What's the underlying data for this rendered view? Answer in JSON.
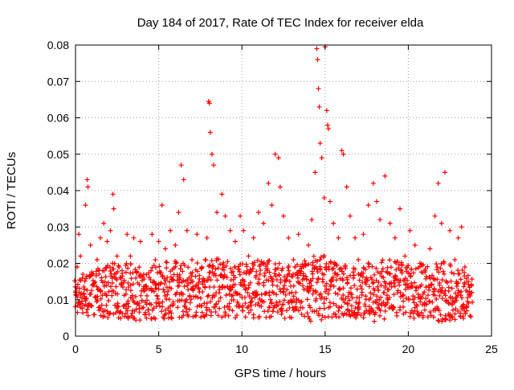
{
  "chart_data": {
    "type": "scatter",
    "title": "Day 184 of 2017, Rate Of TEC Index for receiver elda",
    "xlabel": "GPS time / hours",
    "ylabel": "ROTI / TECUs",
    "xlim": [
      0,
      25
    ],
    "ylim": [
      0,
      0.08
    ],
    "x_ticks": [
      0,
      5,
      10,
      15,
      20,
      25
    ],
    "x_tick_labels": [
      "0",
      "5",
      "10",
      "15",
      "20",
      "25"
    ],
    "y_ticks": [
      0,
      0.01,
      0.02,
      0.03,
      0.04,
      0.05,
      0.06,
      0.07,
      0.08
    ],
    "y_tick_labels": [
      "0",
      "0.01",
      "0.02",
      "0.03",
      "0.04",
      "0.05",
      "0.06",
      "0.07",
      "0.08"
    ],
    "grid": true,
    "marker": "+",
    "series": [
      {
        "color": "#ff0000",
        "points": [
          [
            0.0,
            0.012
          ],
          [
            0.1,
            0.019
          ],
          [
            0.2,
            0.028
          ],
          [
            0.3,
            0.022
          ],
          [
            0.45,
            0.017
          ],
          [
            0.6,
            0.036
          ],
          [
            0.7,
            0.043
          ],
          [
            0.75,
            0.041
          ],
          [
            0.9,
            0.025
          ],
          [
            1.1,
            0.014
          ],
          [
            1.3,
            0.021
          ],
          [
            1.5,
            0.027
          ],
          [
            1.7,
            0.031
          ],
          [
            1.9,
            0.026
          ],
          [
            2.1,
            0.029
          ],
          [
            2.25,
            0.039
          ],
          [
            2.3,
            0.035
          ],
          [
            2.5,
            0.022
          ],
          [
            2.8,
            0.018
          ],
          [
            3.1,
            0.028
          ],
          [
            3.3,
            0.022
          ],
          [
            3.5,
            0.027
          ],
          [
            3.7,
            0.009
          ],
          [
            3.9,
            0.026
          ],
          [
            4.1,
            0.017
          ],
          [
            4.3,
            0.013
          ],
          [
            4.6,
            0.028
          ],
          [
            4.8,
            0.021
          ],
          [
            5.0,
            0.026
          ],
          [
            5.2,
            0.036
          ],
          [
            5.4,
            0.024
          ],
          [
            5.7,
            0.029
          ],
          [
            6.0,
            0.025
          ],
          [
            6.2,
            0.034
          ],
          [
            6.35,
            0.047
          ],
          [
            6.5,
            0.043
          ],
          [
            6.7,
            0.029
          ],
          [
            7.0,
            0.021
          ],
          [
            7.3,
            0.028
          ],
          [
            7.6,
            0.019
          ],
          [
            7.9,
            0.027
          ],
          [
            8.0,
            0.0645
          ],
          [
            8.05,
            0.064
          ],
          [
            8.1,
            0.056
          ],
          [
            8.2,
            0.05
          ],
          [
            8.3,
            0.047
          ],
          [
            8.5,
            0.034
          ],
          [
            8.8,
            0.039
          ],
          [
            9.0,
            0.033
          ],
          [
            9.3,
            0.029
          ],
          [
            9.6,
            0.026
          ],
          [
            9.9,
            0.033
          ],
          [
            10.1,
            0.029
          ],
          [
            10.4,
            0.022
          ],
          [
            10.7,
            0.027
          ],
          [
            11.0,
            0.034
          ],
          [
            11.3,
            0.031
          ],
          [
            11.6,
            0.042
          ],
          [
            11.8,
            0.036
          ],
          [
            12.0,
            0.05
          ],
          [
            12.2,
            0.049
          ],
          [
            12.3,
            0.041
          ],
          [
            12.5,
            0.033
          ],
          [
            12.8,
            0.027
          ],
          [
            13.1,
            0.021
          ],
          [
            13.4,
            0.028
          ],
          [
            13.7,
            0.019
          ],
          [
            14.0,
            0.025
          ],
          [
            14.2,
            0.032
          ],
          [
            14.4,
            0.045
          ],
          [
            14.5,
            0.079
          ],
          [
            14.55,
            0.076
          ],
          [
            14.6,
            0.068
          ],
          [
            14.65,
            0.063
          ],
          [
            14.7,
            0.053
          ],
          [
            14.8,
            0.049
          ],
          [
            14.95,
            0.038
          ],
          [
            15.0,
            0.0795
          ],
          [
            15.1,
            0.062
          ],
          [
            15.15,
            0.058
          ],
          [
            15.2,
            0.057
          ],
          [
            15.3,
            0.037
          ],
          [
            15.5,
            0.031
          ],
          [
            15.8,
            0.027
          ],
          [
            16.0,
            0.051
          ],
          [
            16.1,
            0.05
          ],
          [
            16.3,
            0.041
          ],
          [
            16.5,
            0.033
          ],
          [
            16.8,
            0.027
          ],
          [
            17.0,
            0.021
          ],
          [
            17.3,
            0.028
          ],
          [
            17.6,
            0.036
          ],
          [
            17.9,
            0.042
          ],
          [
            18.1,
            0.037
          ],
          [
            18.3,
            0.032
          ],
          [
            18.6,
            0.044
          ],
          [
            18.9,
            0.031
          ],
          [
            19.2,
            0.027
          ],
          [
            19.5,
            0.035
          ],
          [
            19.8,
            0.022
          ],
          [
            20.1,
            0.029
          ],
          [
            20.4,
            0.025
          ],
          [
            20.7,
            0.02
          ],
          [
            21.0,
            0.018
          ],
          [
            21.3,
            0.024
          ],
          [
            21.6,
            0.033
          ],
          [
            21.8,
            0.042
          ],
          [
            22.0,
            0.031
          ],
          [
            22.2,
            0.045
          ],
          [
            22.5,
            0.029
          ],
          [
            22.8,
            0.021
          ],
          [
            23.0,
            0.027
          ],
          [
            23.2,
            0.03
          ],
          [
            23.4,
            0.019
          ],
          [
            23.6,
            0.015
          ],
          [
            23.8,
            0.012
          ]
        ]
      }
    ],
    "band": {
      "x_step": 0.1,
      "lower_edge": [
        [
          0,
          0.006
        ],
        [
          2,
          0.005
        ],
        [
          4,
          0.004
        ],
        [
          6,
          0.005
        ],
        [
          8,
          0.005
        ],
        [
          10,
          0.005
        ],
        [
          12,
          0.005
        ],
        [
          14,
          0.004
        ],
        [
          16,
          0.005
        ],
        [
          18,
          0.004
        ],
        [
          20,
          0.005
        ],
        [
          22,
          0.004
        ],
        [
          23.8,
          0.005
        ]
      ],
      "upper_edge": [
        [
          0,
          0.016
        ],
        [
          1,
          0.018
        ],
        [
          2,
          0.02
        ],
        [
          3,
          0.021
        ],
        [
          4,
          0.019
        ],
        [
          5,
          0.02
        ],
        [
          6,
          0.021
        ],
        [
          7,
          0.02
        ],
        [
          8,
          0.022
        ],
        [
          9,
          0.021
        ],
        [
          10,
          0.02
        ],
        [
          11,
          0.021
        ],
        [
          12,
          0.021
        ],
        [
          13,
          0.019
        ],
        [
          14,
          0.022
        ],
        [
          15,
          0.023
        ],
        [
          16,
          0.02
        ],
        [
          17,
          0.019
        ],
        [
          18,
          0.021
        ],
        [
          19,
          0.021
        ],
        [
          20,
          0.02
        ],
        [
          21,
          0.02
        ],
        [
          22,
          0.021
        ],
        [
          23,
          0.019
        ],
        [
          23.8,
          0.016
        ]
      ]
    }
  }
}
